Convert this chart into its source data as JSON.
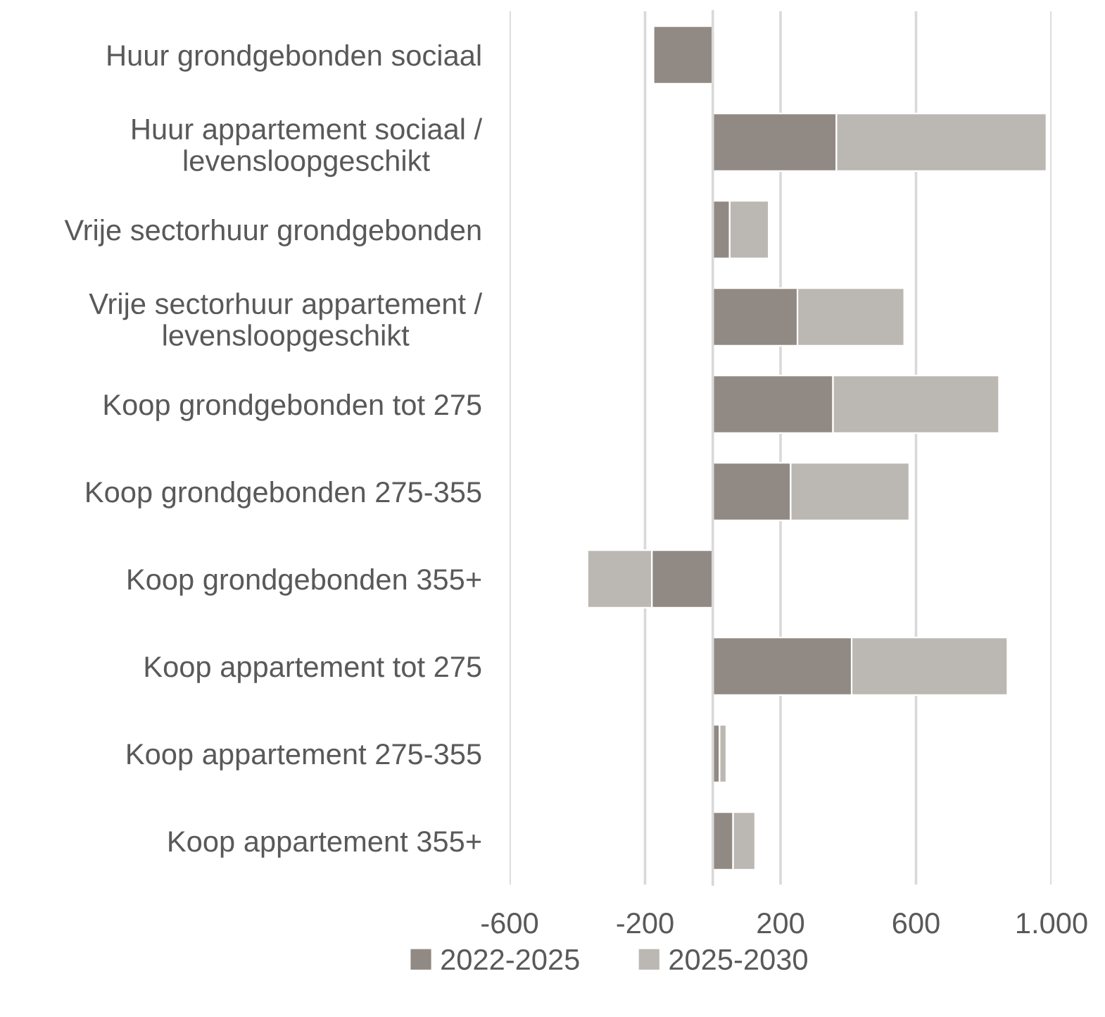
{
  "chart_data": {
    "type": "bar",
    "orientation": "horizontal",
    "stacked": true,
    "categories": [
      "Huur grondgebonden sociaal",
      "Huur appartement sociaal /\nlevensloopgeschikt",
      "Vrije sectorhuur grondgebonden",
      "Vrije sectorhuur appartement /\nlevensloopgeschikt",
      "Koop grondgebonden tot 275",
      "Koop grondgebonden 275-355",
      "Koop grondgebonden 355+",
      "Koop appartement tot 275",
      "Koop appartement 275-355",
      "Koop appartement 355+"
    ],
    "series": [
      {
        "name": "2022-2025",
        "color": "#918983",
        "values": [
          -175,
          365,
          50,
          250,
          355,
          230,
          -180,
          410,
          20,
          60
        ]
      },
      {
        "name": "2025-2030",
        "color": "#bbb7b3",
        "values": [
          null,
          620,
          115,
          315,
          490,
          350,
          -190,
          460,
          20,
          65
        ]
      }
    ],
    "xlim": [
      -600,
      1000
    ],
    "xticks": [
      -600,
      -200,
      200,
      600,
      {
        "value": 1000,
        "label": "1.000"
      }
    ],
    "grid": "x",
    "legend": "bottom"
  }
}
